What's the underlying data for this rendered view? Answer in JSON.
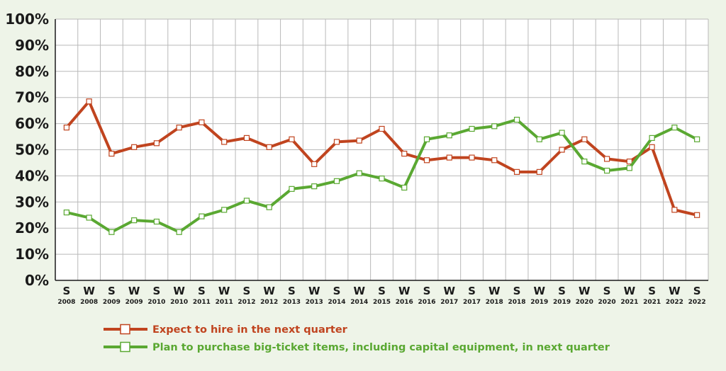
{
  "chart_data": {
    "type": "line",
    "title": "",
    "xlabel": "",
    "ylabel": "",
    "ylim": [
      0,
      100
    ],
    "y_ticks": [
      "100%",
      "90%",
      "80%",
      "70%",
      "60%",
      "50%",
      "40%",
      "30%",
      "20%",
      "10%",
      "0%"
    ],
    "grid": true,
    "legend_position": "bottom",
    "categories": [
      {
        "season": "S",
        "year": "2008"
      },
      {
        "season": "W",
        "year": "2008"
      },
      {
        "season": "S",
        "year": "2009"
      },
      {
        "season": "W",
        "year": "2009"
      },
      {
        "season": "S",
        "year": "2010"
      },
      {
        "season": "W",
        "year": "2010"
      },
      {
        "season": "S",
        "year": "2011"
      },
      {
        "season": "W",
        "year": "2011"
      },
      {
        "season": "S",
        "year": "2012"
      },
      {
        "season": "W",
        "year": "2012"
      },
      {
        "season": "S",
        "year": "2013"
      },
      {
        "season": "W",
        "year": "2013"
      },
      {
        "season": "S",
        "year": "2014"
      },
      {
        "season": "W",
        "year": "2014"
      },
      {
        "season": "S",
        "year": "2015"
      },
      {
        "season": "W",
        "year": "2016"
      },
      {
        "season": "S",
        "year": "2016"
      },
      {
        "season": "W",
        "year": "2017"
      },
      {
        "season": "S",
        "year": "2017"
      },
      {
        "season": "W",
        "year": "2018"
      },
      {
        "season": "S",
        "year": "2018"
      },
      {
        "season": "W",
        "year": "2019"
      },
      {
        "season": "S",
        "year": "2019"
      },
      {
        "season": "W",
        "year": "2020"
      },
      {
        "season": "S",
        "year": "2020"
      },
      {
        "season": "W",
        "year": "2021"
      },
      {
        "season": "S",
        "year": "2021"
      },
      {
        "season": "W",
        "year": "2022"
      },
      {
        "season": "S",
        "year": "2022"
      }
    ],
    "series": [
      {
        "name": "Expect to hire in the next quarter",
        "color": "#c0441f",
        "values": [
          58.5,
          68.5,
          48.5,
          51,
          52.5,
          58.5,
          60.5,
          53,
          54.5,
          51,
          54,
          44.5,
          53,
          53.5,
          58,
          48.5,
          46,
          47,
          47,
          46,
          41.5,
          41.5,
          50,
          54,
          46.5,
          45.5,
          51,
          27,
          25
        ]
      },
      {
        "name": "Plan to purchase big-ticket items, including capital equipment, in next quarter",
        "color": "#5aa832",
        "values": [
          26,
          24,
          18.5,
          23,
          22.5,
          18.5,
          24.5,
          27,
          30.5,
          28,
          35,
          36,
          38,
          41,
          39,
          35.5,
          54,
          55.5,
          58,
          59,
          61.5,
          54,
          56.5,
          45.5,
          42,
          43,
          54.5,
          58.5,
          54
        ]
      }
    ]
  }
}
